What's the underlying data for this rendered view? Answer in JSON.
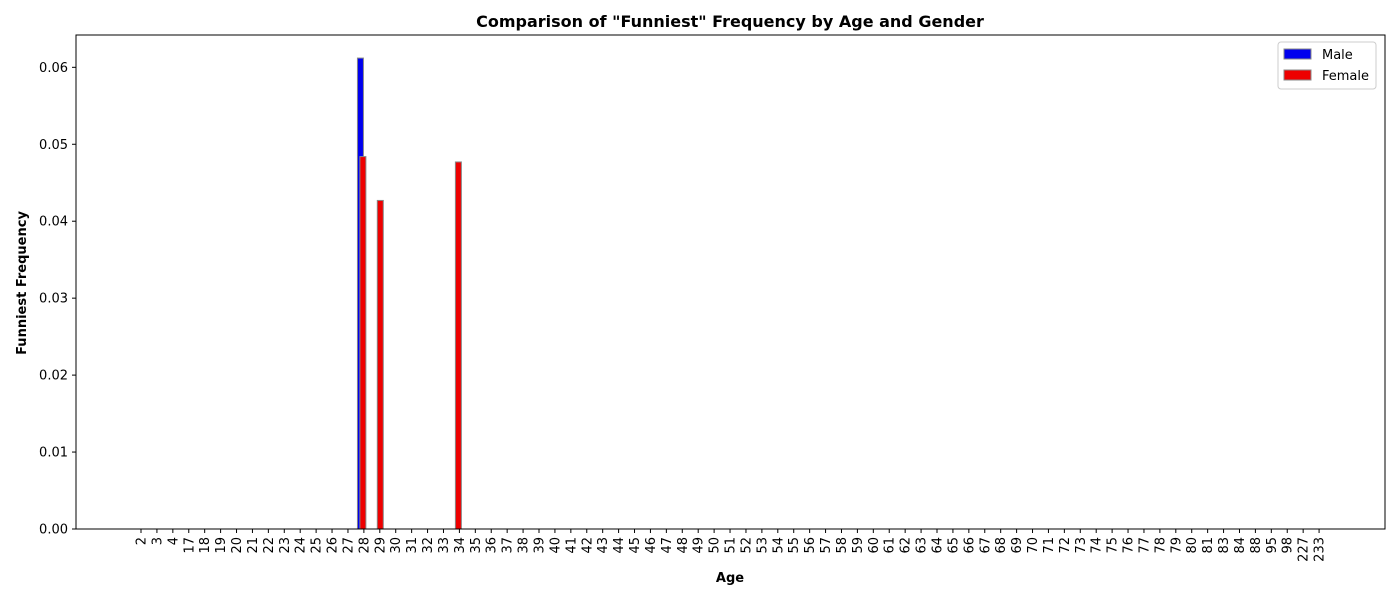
{
  "chart_data": {
    "type": "bar",
    "title": "Comparison of \"Funniest\" Frequency by Age and Gender",
    "xlabel": "Age",
    "ylabel": "Funniest Frequency",
    "ylim": [
      0,
      0.0642
    ],
    "yticks": [
      "0.00",
      "0.01",
      "0.02",
      "0.03",
      "0.04",
      "0.05",
      "0.06"
    ],
    "legend_position": "top-right",
    "grid": false,
    "categories": [
      "2",
      "3",
      "4",
      "17",
      "18",
      "19",
      "20",
      "21",
      "22",
      "23",
      "24",
      "25",
      "26",
      "27",
      "28",
      "29",
      "30",
      "31",
      "32",
      "33",
      "34",
      "35",
      "36",
      "37",
      "38",
      "39",
      "40",
      "41",
      "42",
      "43",
      "44",
      "45",
      "46",
      "47",
      "48",
      "49",
      "50",
      "51",
      "52",
      "53",
      "54",
      "55",
      "56",
      "57",
      "58",
      "59",
      "60",
      "61",
      "62",
      "63",
      "64",
      "65",
      "66",
      "67",
      "68",
      "69",
      "70",
      "71",
      "72",
      "73",
      "74",
      "75",
      "76",
      "77",
      "78",
      "79",
      "80",
      "81",
      "83",
      "84",
      "88",
      "95",
      "98",
      "227",
      "233"
    ],
    "series": [
      {
        "name": "Male",
        "color": "#0000ee",
        "values": [
          0,
          0,
          0,
          0,
          0,
          0,
          0,
          0.0612,
          0,
          0,
          0,
          0,
          0,
          0,
          0,
          0,
          0,
          0,
          0,
          0,
          0,
          0,
          0,
          0,
          0,
          0,
          0,
          0,
          0,
          0,
          0,
          0,
          0,
          0,
          0,
          0,
          0,
          0,
          0,
          0,
          0,
          0,
          0,
          0,
          0,
          0,
          0,
          0,
          0,
          0,
          0,
          0,
          0,
          0,
          0,
          0,
          0,
          0,
          0,
          0,
          0,
          0,
          0,
          0,
          0,
          0,
          0,
          0,
          0,
          0,
          0,
          0,
          0,
          0,
          0
        ]
      },
      {
        "name": "Female",
        "color": "#ee0000",
        "values": [
          0,
          0,
          0,
          0,
          0,
          0,
          0,
          0,
          0,
          0,
          0,
          0,
          0,
          0,
          0.0484,
          0,
          0,
          0,
          0,
          0,
          0.0477,
          0,
          0,
          0,
          0,
          0,
          0,
          0,
          0,
          0,
          0,
          0,
          0,
          0,
          0,
          0,
          0,
          0,
          0,
          0,
          0,
          0,
          0,
          0,
          0,
          0,
          0,
          0,
          0,
          0,
          0,
          0,
          0,
          0,
          0,
          0,
          0,
          0,
          0,
          0,
          0,
          0,
          0,
          0,
          0,
          0,
          0,
          0,
          0,
          0,
          0,
          0,
          0,
          0,
          0
        ],
        "extra_bars": [
          {
            "after_category": "29",
            "value": 0.0427
          }
        ]
      }
    ]
  }
}
